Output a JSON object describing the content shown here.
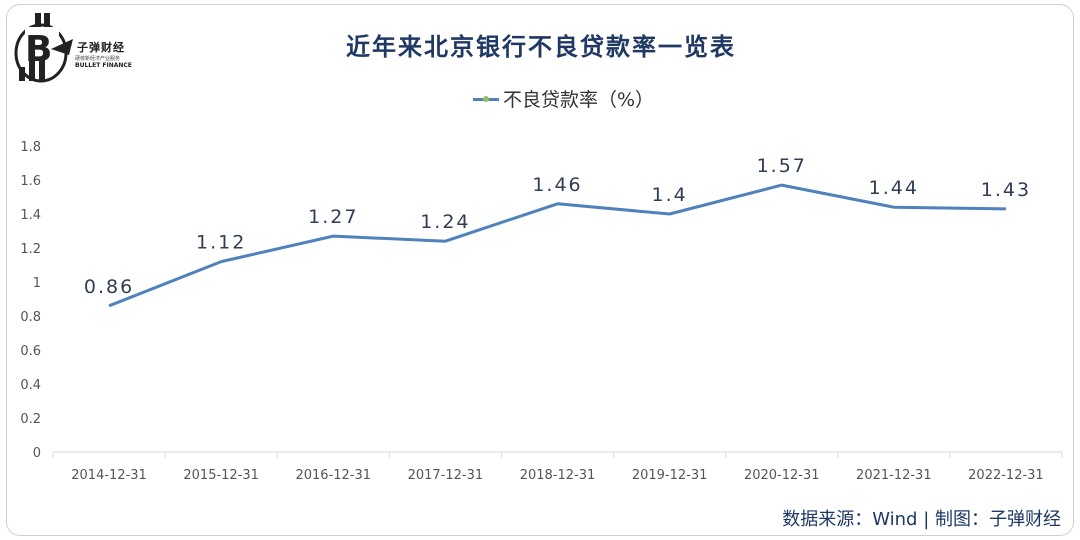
{
  "logo": {
    "name": "子弹财经",
    "tagline": "硬核新经济产业服务",
    "english": "BULLET FINANCE"
  },
  "colors": {
    "title": "#1f3864",
    "series": "#4f81bd",
    "legend_dot": "#9bbb59",
    "axis": "#d9d9d9"
  },
  "source_note": "数据来源：Wind  |  制图：子弹财经",
  "chart_data": {
    "type": "line",
    "title": "近年来北京银行不良贷款率一览表",
    "categories": [
      "2014-12-31",
      "2015-12-31",
      "2016-12-31",
      "2017-12-31",
      "2018-12-31",
      "2019-12-31",
      "2020-12-31",
      "2021-12-31",
      "2022-12-31"
    ],
    "series": [
      {
        "name": "不良贷款率（%）",
        "values": [
          0.86,
          1.12,
          1.27,
          1.24,
          1.46,
          1.4,
          1.57,
          1.44,
          1.43
        ],
        "labels": [
          "0.86",
          "1.12",
          "1.27",
          "1.24",
          "1.46",
          "1.4",
          "1.57",
          "1.44",
          "1.43"
        ]
      }
    ],
    "y_ticks": [
      "0",
      "0.2",
      "0.4",
      "0.6",
      "0.8",
      "1",
      "1.2",
      "1.4",
      "1.6",
      "1.8"
    ],
    "ylim": [
      0,
      1.8
    ],
    "grid": false,
    "legend_position": "top"
  }
}
